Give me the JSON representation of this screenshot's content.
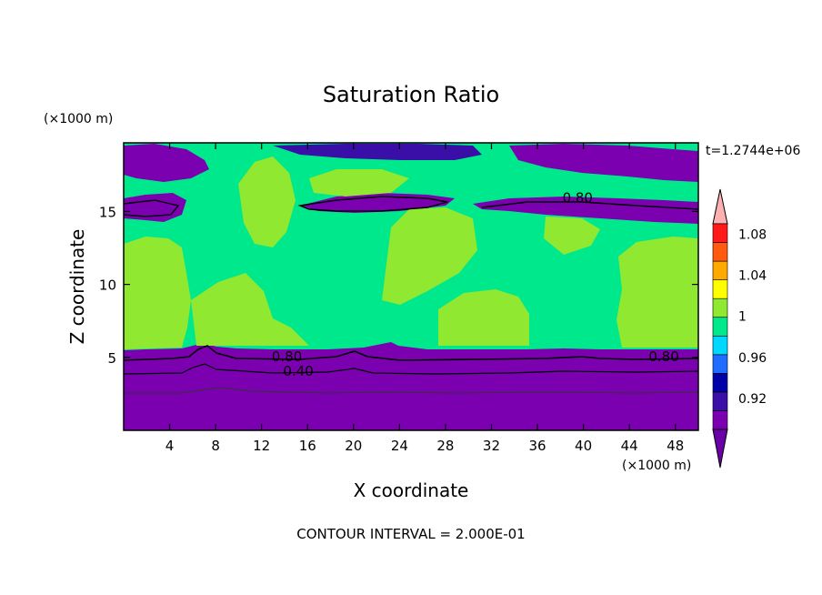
{
  "chart_data": {
    "type": "heatmap",
    "title": "Saturation Ratio",
    "xlabel": "X coordinate",
    "ylabel": "Z coordinate",
    "x_unit": "(×1000 m)",
    "y_unit": "(×1000 m)",
    "time_label": "t=1.2744e+06",
    "footer": "CONTOUR INTERVAL = 2.000E-01",
    "xlim": [
      0,
      50
    ],
    "ylim": [
      0,
      19.7
    ],
    "x_ticks": [
      4,
      8,
      12,
      16,
      20,
      24,
      28,
      32,
      36,
      40,
      44,
      48
    ],
    "y_ticks": [
      5,
      10,
      15
    ],
    "contour_labels": [
      {
        "text": "0.80",
        "x": 14.2,
        "z": 5.1
      },
      {
        "text": "0.40",
        "x": 15.2,
        "z": 4.1
      },
      {
        "text": "0.80",
        "x": 47.0,
        "z": 5.1
      },
      {
        "text": "0.80",
        "x": 39.5,
        "z": 16.0
      }
    ],
    "colorbar": {
      "levels": [
        0.9,
        0.92,
        0.94,
        0.96,
        0.98,
        1.0,
        1.02,
        1.04,
        1.06,
        1.08,
        1.1
      ],
      "tick_labels": [
        "0.92",
        "0.96",
        "1",
        "1.04",
        "1.08"
      ],
      "tick_values": [
        0.92,
        0.96,
        1.0,
        1.04,
        1.08
      ],
      "colors": [
        "#7a00b0",
        "#3a0fa8",
        "#0000a8",
        "#1f6cff",
        "#00d8ff",
        "#00e88c",
        "#90e830",
        "#ffff00",
        "#ffaa00",
        "#ff5a10",
        "#ff1a1a"
      ],
      "under_color": "#6a00a8",
      "over_color": "#ffb0b0"
    }
  }
}
